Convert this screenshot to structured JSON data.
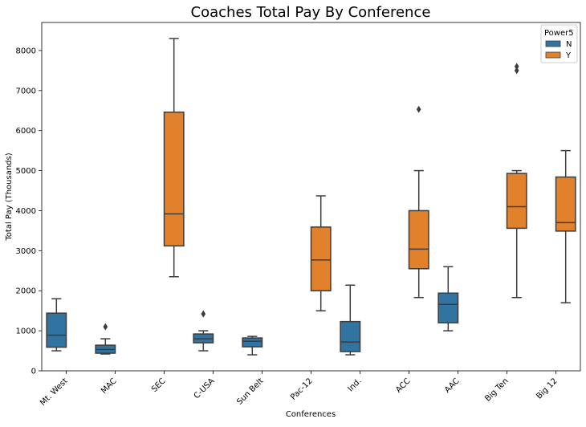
{
  "chart_data": {
    "type": "box",
    "title": "Coaches Total Pay By Conference",
    "xlabel": "Conferences",
    "ylabel": "Total Pay (Thousands)",
    "categories": [
      "Mt. West",
      "MAC",
      "SEC",
      "C-USA",
      "Sun Belt",
      "Pac-12",
      "Ind.",
      "ACC",
      "AAC",
      "Big Ten",
      "Big 12"
    ],
    "ylim": [
      0,
      8700
    ],
    "yticks": [
      0,
      1000,
      2000,
      3000,
      4000,
      5000,
      6000,
      7000,
      8000
    ],
    "grid": false,
    "legend": {
      "title": "Power5",
      "placement": "top-right",
      "entries": [
        {
          "label": "N",
          "color": "#3274a1"
        },
        {
          "label": "Y",
          "color": "#e1812c"
        }
      ]
    },
    "series": [
      {
        "name": "N",
        "color": "#3274a1",
        "boxes": [
          {
            "category": "Mt. West",
            "whisker_low": 500,
            "q1": 590,
            "median": 890,
            "q3": 1440,
            "whisker_high": 1800,
            "outliers": []
          },
          {
            "category": "MAC",
            "whisker_low": 420,
            "q1": 440,
            "median": 530,
            "q3": 640,
            "whisker_high": 800,
            "outliers": [
              1100
            ]
          },
          {
            "category": "C-USA",
            "whisker_low": 500,
            "q1": 700,
            "median": 800,
            "q3": 920,
            "whisker_high": 1000,
            "outliers": [
              1420
            ]
          },
          {
            "category": "Sun Belt",
            "whisker_low": 400,
            "q1": 600,
            "median": 740,
            "q3": 820,
            "whisker_high": 860,
            "outliers": []
          },
          {
            "category": "Ind.",
            "whisker_low": 400,
            "q1": 480,
            "median": 720,
            "q3": 1230,
            "whisker_high": 2140,
            "outliers": []
          },
          {
            "category": "AAC",
            "whisker_low": 1000,
            "q1": 1200,
            "median": 1660,
            "q3": 1940,
            "whisker_high": 2600,
            "outliers": []
          }
        ]
      },
      {
        "name": "Y",
        "color": "#e1812c",
        "boxes": [
          {
            "category": "SEC",
            "whisker_low": 2350,
            "q1": 3120,
            "median": 3920,
            "q3": 6460,
            "whisker_high": 8300,
            "outliers": []
          },
          {
            "category": "Pac-12",
            "whisker_low": 1500,
            "q1": 2000,
            "median": 2770,
            "q3": 3590,
            "whisker_high": 4370,
            "outliers": []
          },
          {
            "category": "ACC",
            "whisker_low": 1830,
            "q1": 2550,
            "median": 3040,
            "q3": 4000,
            "whisker_high": 5000,
            "outliers": [
              6530
            ]
          },
          {
            "category": "Big Ten",
            "whisker_low": 1830,
            "q1": 3560,
            "median": 4100,
            "q3": 4930,
            "whisker_high": 5000,
            "outliers": [
              7500,
              7600
            ]
          },
          {
            "category": "Big 12",
            "whisker_low": 1700,
            "q1": 3490,
            "median": 3700,
            "q3": 4840,
            "whisker_high": 5500,
            "outliers": []
          }
        ]
      }
    ]
  }
}
